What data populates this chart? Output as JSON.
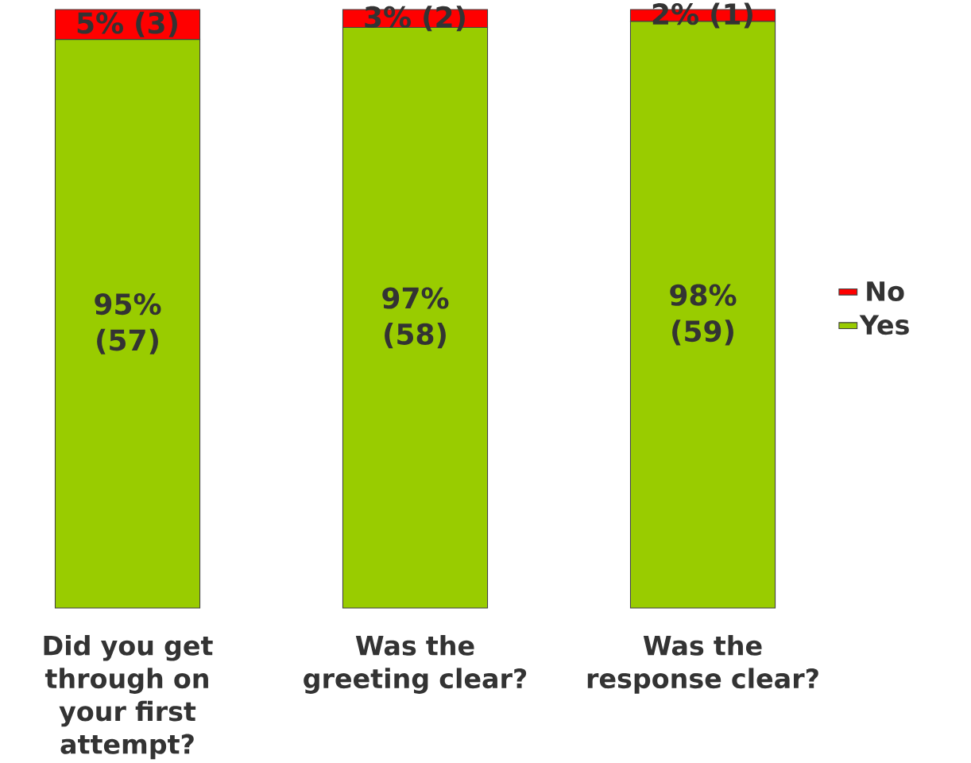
{
  "chart_data": {
    "type": "bar",
    "stacked": true,
    "categories": [
      "Did you get through on your first attempt?",
      "Was the greeting clear?",
      "Was the response clear?"
    ],
    "ylim": [
      0,
      100
    ],
    "series": [
      {
        "name": "Yes",
        "color": "#99cc00",
        "values": [
          95,
          97,
          98
        ],
        "value_labels": [
          "95% (57)",
          "97% (58)",
          "98% (59)"
        ]
      },
      {
        "name": "No",
        "color": "#ff0000",
        "values": [
          5,
          3,
          2
        ],
        "value_labels": [
          "5% (3)",
          "3% (2)",
          "2% (1)"
        ]
      }
    ],
    "legend": "right"
  }
}
